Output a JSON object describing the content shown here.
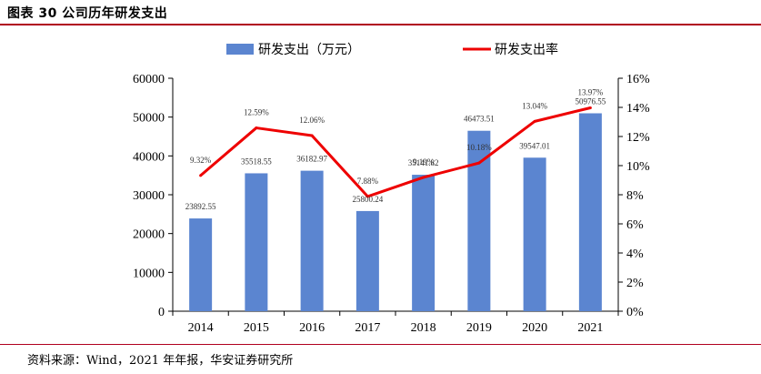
{
  "figure": {
    "title": "图表 30 公司历年研发支出",
    "source": "资料来源：Wind，2021 年年报，华安证券研究所"
  },
  "colors": {
    "bar": "#5b85d0",
    "line": "#ee0000",
    "rule": "#b0001f"
  },
  "chart_data": {
    "type": "bar",
    "categories": [
      "2014",
      "2015",
      "2016",
      "2017",
      "2018",
      "2019",
      "2020",
      "2021"
    ],
    "series": [
      {
        "name": "研发支出（万元）",
        "type": "bar",
        "axis": "left",
        "values": [
          23892.55,
          35518.55,
          36182.97,
          25800.24,
          35141.82,
          46473.51,
          39547.01,
          50976.55
        ],
        "labels": [
          "23892.55",
          "35518.55",
          "36182.97",
          "25800.24",
          "35141.82",
          "46473.51",
          "39547.01",
          "50976.55"
        ]
      },
      {
        "name": "研发支出率",
        "type": "line",
        "axis": "right",
        "values": [
          9.32,
          12.59,
          12.06,
          7.88,
          9.19,
          10.18,
          13.04,
          13.97
        ],
        "labels": [
          "9.32%",
          "12.59%",
          "12.06%",
          "7.88%",
          "9.19%",
          "10.18%",
          "13.04%",
          "13.97%"
        ]
      }
    ],
    "y_left": {
      "lim": [
        0,
        60000
      ],
      "ticks": [
        "0",
        "10000",
        "20000",
        "30000",
        "40000",
        "50000",
        "60000"
      ]
    },
    "y_right": {
      "lim": [
        0,
        16
      ],
      "ticks": [
        "0%",
        "2%",
        "4%",
        "6%",
        "8%",
        "10%",
        "12%",
        "14%",
        "16%"
      ]
    },
    "legend_position": "top",
    "grid": false
  }
}
